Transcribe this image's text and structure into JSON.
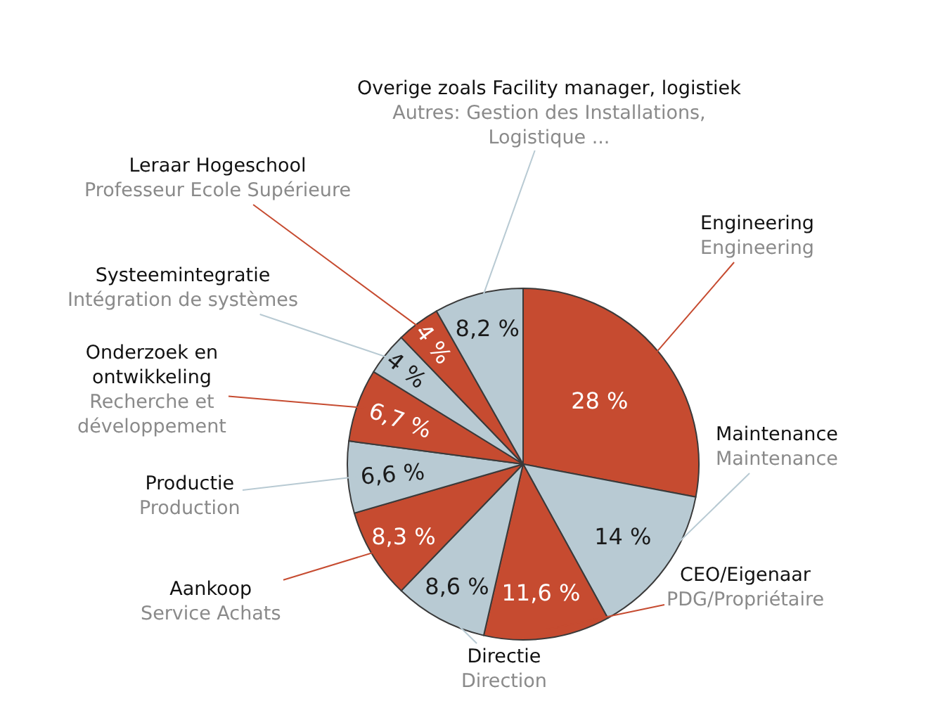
{
  "chart_data": {
    "type": "pie",
    "categories": [
      "Engineering\nEngineering",
      "Maintenance\nMaintenance",
      "CEO/Eigenaar\nPDG/Propriétaire",
      "Directie\nDirection",
      "Aankoop\nService Achats",
      "Productie\nProduction",
      "Onderzoek en\nontwikkeling\nRecherche et\ndéveloppement",
      "Systeemintegratie\nIntégration de systèmes",
      "Leraar Hogeschool\nProfesseur Ecole Supérieure",
      "Overige zoals Facility manager, logistiek\nAutres: Gestion des Installations,\nLogistique ..."
    ],
    "values": [
      28,
      14,
      11.6,
      8.6,
      8.3,
      6.6,
      6.7,
      4,
      4,
      8.2
    ],
    "value_labels": [
      "28 %",
      "14 %",
      "11,6 %",
      "8,6 %",
      "8,3 %",
      "6,6 %",
      "6,7 %",
      "4 %",
      "4 %",
      "8,2 %"
    ],
    "colors": [
      "#c64b30",
      "#b8cad3",
      "#c64b30",
      "#b8cad3",
      "#c64b30",
      "#b8cad3",
      "#c64b30",
      "#b8cad3",
      "#c64b30",
      "#b8cad3"
    ]
  }
}
